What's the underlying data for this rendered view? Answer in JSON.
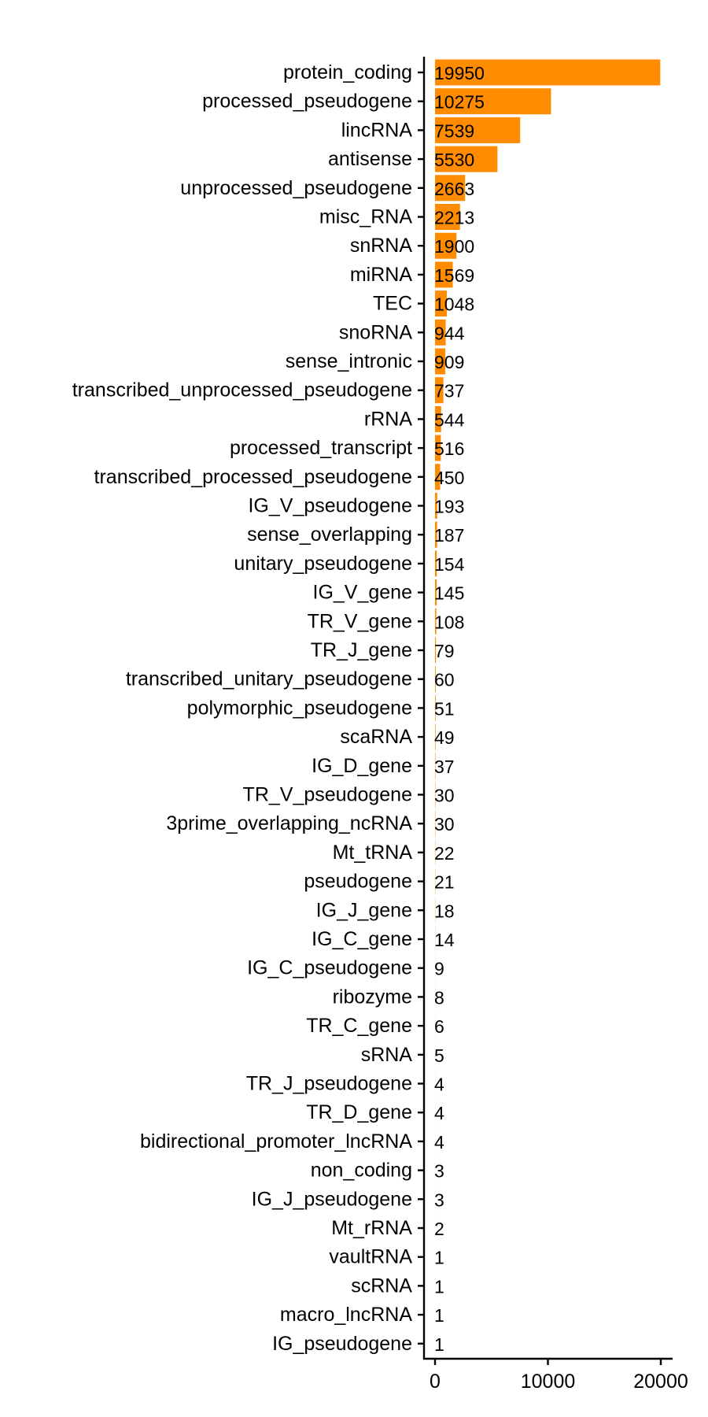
{
  "colors": {
    "bar": "#FF8C00"
  },
  "chart_data": {
    "type": "bar",
    "orientation": "horizontal",
    "title": "",
    "xlabel": "",
    "ylabel": "",
    "xlim": [
      0,
      20000
    ],
    "x_ticks": [
      0,
      10000,
      20000
    ],
    "grid": false,
    "legend": "none",
    "categories": [
      "protein_coding",
      "processed_pseudogene",
      "lincRNA",
      "antisense",
      "unprocessed_pseudogene",
      "misc_RNA",
      "snRNA",
      "miRNA",
      "TEC",
      "snoRNA",
      "sense_intronic",
      "transcribed_unprocessed_pseudogene",
      "rRNA",
      "processed_transcript",
      "transcribed_processed_pseudogene",
      "IG_V_pseudogene",
      "sense_overlapping",
      "unitary_pseudogene",
      "IG_V_gene",
      "TR_V_gene",
      "TR_J_gene",
      "transcribed_unitary_pseudogene",
      "polymorphic_pseudogene",
      "scaRNA",
      "IG_D_gene",
      "TR_V_pseudogene",
      "3prime_overlapping_ncRNA",
      "Mt_tRNA",
      "pseudogene",
      "IG_J_gene",
      "IG_C_gene",
      "IG_C_pseudogene",
      "ribozyme",
      "TR_C_gene",
      "sRNA",
      "TR_J_pseudogene",
      "TR_D_gene",
      "bidirectional_promoter_lncRNA",
      "non_coding",
      "IG_J_pseudogene",
      "Mt_rRNA",
      "vaultRNA",
      "scRNA",
      "macro_lncRNA",
      "IG_pseudogene"
    ],
    "values": [
      19950,
      10275,
      7539,
      5530,
      2663,
      2213,
      1900,
      1569,
      1048,
      944,
      909,
      737,
      544,
      516,
      450,
      193,
      187,
      154,
      145,
      108,
      79,
      60,
      51,
      49,
      37,
      30,
      30,
      22,
      21,
      18,
      14,
      9,
      8,
      6,
      5,
      4,
      4,
      4,
      3,
      3,
      2,
      1,
      1,
      1,
      1
    ]
  }
}
